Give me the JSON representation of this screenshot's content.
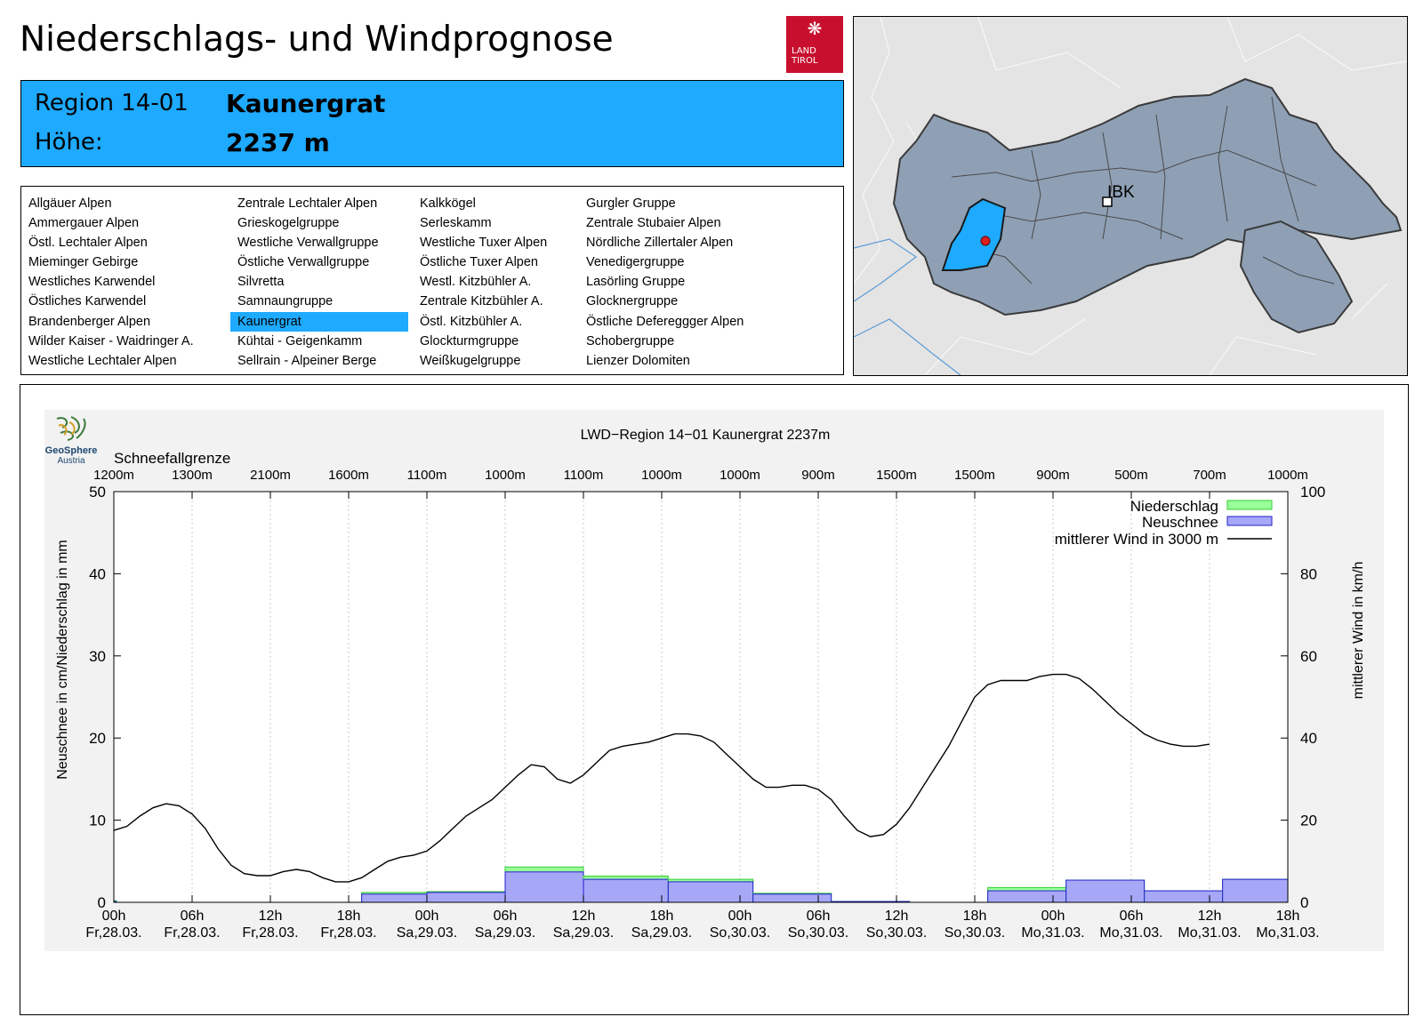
{
  "header": {
    "title": "Niederschlags- und Windprognose",
    "logo_text_line1": "LAND",
    "logo_text_line2": "TIROL",
    "region_label": "Region 14-01",
    "region_name": "Kaunergrat",
    "height_label": "Höhe:",
    "height_value": "2237 m"
  },
  "regions": {
    "columns": [
      [
        "Allgäuer Alpen",
        "Ammergauer Alpen",
        "Östl. Lechtaler Alpen",
        "Mieminger Gebirge",
        "Westliches Karwendel",
        "Östliches Karwendel",
        "Brandenberger Alpen",
        "Wilder Kaiser - Waidringer A.",
        "Westliche Lechtaler Alpen"
      ],
      [
        "Zentrale Lechtaler Alpen",
        "Grieskogelgruppe",
        "Westliche Verwallgruppe",
        "Östliche Verwallgruppe",
        "Silvretta",
        "Samnaungruppe",
        "Kaunergrat",
        "Kühtai - Geigenkamm",
        "Sellrain - Alpeiner Berge"
      ],
      [
        "Kalkkögel",
        "Serleskamm",
        "Westliche Tuxer Alpen",
        "Östliche Tuxer Alpen",
        "Westl. Kitzbühler A.",
        "Zentrale Kitzbühler A.",
        "Östl. Kitzbühler A.",
        "Glockturmgruppe",
        "Weißkugelgruppe"
      ],
      [
        "Gurgler Gruppe",
        "Zentrale Stubaier Alpen",
        "Nördliche Zillertaler Alpen",
        "Venedigergruppe",
        "Lasörling Gruppe",
        "Glocknergruppe",
        "Östliche Defereggger Alpen",
        "Schobergruppe",
        "Lienzer Dolomiten"
      ]
    ],
    "selected": "Kaunergrat"
  },
  "map": {
    "city_label": "IBK",
    "region_color": "#1eaaff",
    "marker_color": "#e02020"
  },
  "branding": {
    "org_line1": "GeoSphere",
    "org_line2": "Austria"
  },
  "chart_data": {
    "type": "bar",
    "title": "LWD−Region 14−01 Kaunergrat 2237m",
    "snow_line_label": "Schneefallgrenze",
    "snow_line": [
      "1200m",
      "1300m",
      "2100m",
      "1600m",
      "1100m",
      "1000m",
      "1100m",
      "1000m",
      "1000m",
      "900m",
      "1500m",
      "1500m",
      "900m",
      "500m",
      "700m",
      "1000m"
    ],
    "ylabel_left": "Neuschnee in cm/Niederschlag in mm",
    "ylabel_right": "mittlerer Wind in km/h",
    "ylim_left": [
      0,
      50
    ],
    "ylim_right": [
      0,
      100
    ],
    "left_ticks": [
      "0",
      "10",
      "20",
      "30",
      "40",
      "50"
    ],
    "right_ticks": [
      "0",
      "20",
      "40",
      "60",
      "80",
      "100"
    ],
    "x_hours": [
      0,
      90
    ],
    "x_labels": [
      [
        "00h",
        "Fr,28.03."
      ],
      [
        "06h",
        "Fr,28.03."
      ],
      [
        "12h",
        "Fr,28.03."
      ],
      [
        "18h",
        "Fr,28.03."
      ],
      [
        "00h",
        "Sa,29.03."
      ],
      [
        "06h",
        "Sa,29.03."
      ],
      [
        "12h",
        "Sa,29.03."
      ],
      [
        "18h",
        "Sa,29.03."
      ],
      [
        "00h",
        "So,30.03."
      ],
      [
        "06h",
        "So,30.03."
      ],
      [
        "12h",
        "So,30.03."
      ],
      [
        "18h",
        "So,30.03."
      ],
      [
        "00h",
        "Mo,31.03."
      ],
      [
        "06h",
        "Mo,31.03."
      ],
      [
        "12h",
        "Mo,31.03."
      ],
      [
        "18h",
        "Mo,31.03."
      ]
    ],
    "legend": [
      "Niederschlag",
      "Neuschnee",
      "mittlerer Wind in 3000 m"
    ],
    "colors": {
      "niederschlag": "#99ff99",
      "niederschlag_edge": "#33cc33",
      "neuschnee": "#a7a7f7",
      "neuschnee_edge": "#2222cc",
      "wind": "#000000"
    },
    "bars": [
      {
        "start": 0,
        "end": 0.2,
        "niederschlag": 0.2,
        "neuschnee": 0.1
      },
      {
        "start": 19,
        "end": 24,
        "niederschlag": 1.2,
        "neuschnee": 1.0
      },
      {
        "start": 24,
        "end": 30,
        "niederschlag": 1.3,
        "neuschnee": 1.2
      },
      {
        "start": 30,
        "end": 36,
        "niederschlag": 4.3,
        "neuschnee": 3.7
      },
      {
        "start": 36,
        "end": 42.5,
        "niederschlag": 3.2,
        "neuschnee": 2.8
      },
      {
        "start": 42.5,
        "end": 49,
        "niederschlag": 2.8,
        "neuschnee": 2.5
      },
      {
        "start": 49,
        "end": 55,
        "niederschlag": 1.1,
        "neuschnee": 1.0
      },
      {
        "start": 55,
        "end": 61,
        "niederschlag": 0.1,
        "neuschnee": 0.1
      },
      {
        "start": 67,
        "end": 73,
        "niederschlag": 1.8,
        "neuschnee": 1.4
      },
      {
        "start": 73,
        "end": 79,
        "niederschlag": 2.7,
        "neuschnee": 2.7
      },
      {
        "start": 79,
        "end": 85,
        "niederschlag": 1.4,
        "neuschnee": 1.4
      },
      {
        "start": 85,
        "end": 90,
        "niederschlag": 2.8,
        "neuschnee": 2.8
      }
    ],
    "wind": [
      [
        0,
        17.5
      ],
      [
        1,
        18.5
      ],
      [
        2,
        21
      ],
      [
        3,
        23
      ],
      [
        4,
        24
      ],
      [
        5,
        23.5
      ],
      [
        6,
        21.5
      ],
      [
        7,
        18
      ],
      [
        8,
        13
      ],
      [
        9,
        9
      ],
      [
        10,
        7
      ],
      [
        11,
        6.5
      ],
      [
        12,
        6.5
      ],
      [
        13,
        7.5
      ],
      [
        14,
        8
      ],
      [
        15,
        7.5
      ],
      [
        16,
        6
      ],
      [
        17,
        5
      ],
      [
        18,
        5
      ],
      [
        19,
        6
      ],
      [
        20,
        8
      ],
      [
        21,
        10
      ],
      [
        22,
        11
      ],
      [
        23,
        11.5
      ],
      [
        24,
        12.5
      ],
      [
        25,
        15
      ],
      [
        26,
        18
      ],
      [
        27,
        21
      ],
      [
        28,
        23
      ],
      [
        29,
        25
      ],
      [
        30,
        28
      ],
      [
        31,
        31
      ],
      [
        32,
        33.5
      ],
      [
        33,
        33
      ],
      [
        34,
        30
      ],
      [
        35,
        29
      ],
      [
        36,
        31
      ],
      [
        37,
        34
      ],
      [
        38,
        37
      ],
      [
        39,
        38
      ],
      [
        40,
        38.5
      ],
      [
        41,
        39
      ],
      [
        42,
        40
      ],
      [
        43,
        41
      ],
      [
        44,
        41
      ],
      [
        45,
        40.5
      ],
      [
        46,
        39
      ],
      [
        47,
        36
      ],
      [
        48,
        33
      ],
      [
        49,
        30
      ],
      [
        50,
        28
      ],
      [
        51,
        28
      ],
      [
        52,
        28.5
      ],
      [
        53,
        28.5
      ],
      [
        54,
        27.5
      ],
      [
        55,
        25
      ],
      [
        56,
        21
      ],
      [
        57,
        17.5
      ],
      [
        58,
        16
      ],
      [
        59,
        16.5
      ],
      [
        60,
        19
      ],
      [
        61,
        23
      ],
      [
        62,
        28
      ],
      [
        63,
        33
      ],
      [
        64,
        38
      ],
      [
        65,
        44
      ],
      [
        66,
        50
      ],
      [
        67,
        53
      ],
      [
        68,
        54
      ],
      [
        69,
        54
      ],
      [
        70,
        54
      ],
      [
        71,
        55
      ],
      [
        72,
        55.5
      ],
      [
        73,
        55.5
      ],
      [
        74,
        54.5
      ],
      [
        75,
        52
      ],
      [
        76,
        49
      ],
      [
        77,
        46
      ],
      [
        78,
        43.5
      ],
      [
        79,
        41
      ],
      [
        80,
        39.5
      ],
      [
        81,
        38.5
      ],
      [
        82,
        38
      ],
      [
        83,
        38
      ],
      [
        84,
        38.5
      ]
    ]
  }
}
